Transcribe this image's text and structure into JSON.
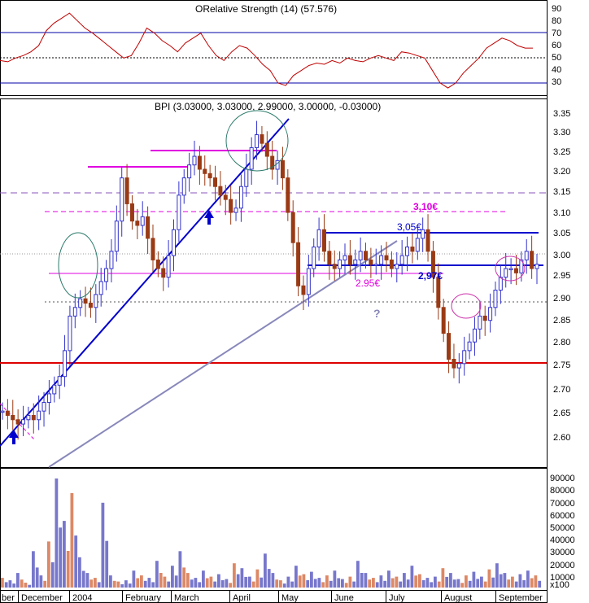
{
  "colors": {
    "background": "#ffffff",
    "rsi_line": "#c00000",
    "band_line": "#0000aa",
    "trend_blue": "#0000cc",
    "trend_gray": "#8888bb",
    "magenta": "#e000e0",
    "support_red": "#dd0000",
    "bar_up": "#3333cc",
    "bar_down": "#9a3a14",
    "vol_up": "#7777cc",
    "vol_down": "#dd8866",
    "ellipse_green": "#2a7a6a",
    "ellipse_pink": "#cc33aa"
  },
  "rsi_panel": {
    "title": "ORelative Strength (14) (57.576)",
    "y_ticks": [
      "90",
      "80",
      "70",
      "60",
      "50",
      "40",
      "30"
    ],
    "overbought": 70,
    "oversold": 30,
    "midline": 50
  },
  "price_panel": {
    "title": "BPI (3.03000, 3.03000, 2.99000, 3.00000, -0.03000)",
    "y_ticks": [
      "3.35",
      "3.30",
      "3.25",
      "3.20",
      "3.15",
      "3.10",
      "3.05",
      "3.00",
      "2.95",
      "2.90",
      "2.85",
      "2.80",
      "2.75",
      "2.70",
      "2.65",
      "2.60"
    ],
    "annotations": {
      "level_310": "3,10€",
      "level_305": "3,05€",
      "level_297": "2,97€",
      "level_295": "2.95€",
      "question": "?"
    }
  },
  "volume_panel": {
    "y_ticks": [
      "90000",
      "80000",
      "70000",
      "60000",
      "50000",
      "40000",
      "30000",
      "20000",
      "10000"
    ],
    "unit": "x100"
  },
  "x_axis": {
    "months": [
      "ber",
      "December",
      "2004",
      "February",
      "March",
      "April",
      "May",
      "June",
      "July",
      "August",
      "September"
    ]
  },
  "chart_data": {
    "type": "bar",
    "title": "BPI (3.03000, 3.03000, 2.99000, 3.00000, -0.03000)",
    "x_range": [
      "Nov 2003",
      "Sep 2004"
    ],
    "ylim": [
      2.56,
      3.38
    ],
    "key_levels": {
      "resistance_magenta": [
        3.25,
        3.21,
        3.1,
        2.95
      ],
      "resistance_blue": [
        3.05,
        2.97
      ],
      "support_red": 2.755,
      "dashed_purple": 3.15,
      "dotted_gray": 2.89
    },
    "close_path": [
      2.66,
      2.65,
      2.64,
      2.63,
      2.64,
      2.65,
      2.64,
      2.66,
      2.68,
      2.7,
      2.72,
      2.74,
      2.8,
      2.88,
      2.9,
      2.92,
      2.91,
      2.9,
      2.93,
      2.96,
      2.99,
      3.03,
      3.1,
      3.2,
      3.14,
      3.1,
      3.09,
      3.11,
      3.06,
      3.01,
      2.99,
      2.97,
      3.02,
      3.08,
      3.16,
      3.2,
      3.23,
      3.25,
      3.22,
      3.21,
      3.2,
      3.18,
      3.16,
      3.15,
      3.12,
      3.13,
      3.18,
      3.22,
      3.27,
      3.3,
      3.28,
      3.25,
      3.22,
      3.24,
      3.2,
      3.12,
      3.05,
      2.95,
      2.93,
      2.99,
      3.04,
      3.08,
      3.03,
      3.0,
      2.99,
      3.01,
      3.02,
      3.0,
      3.01,
      3.03,
      3.01,
      3.0,
      3.0,
      3.02,
      3.01,
      2.99,
      3.0,
      3.02,
      3.04,
      3.03,
      3.06,
      3.08,
      3.03,
      2.97,
      2.9,
      2.84,
      2.78,
      2.76,
      2.77,
      2.8,
      2.82,
      2.85,
      2.88,
      2.87,
      2.9,
      2.94,
      2.97,
      2.99,
      2.99,
      2.98,
      3.01,
      3.03,
      2.99,
      3.0
    ],
    "rsi_path": [
      48,
      47,
      50,
      52,
      55,
      60,
      72,
      78,
      82,
      86,
      80,
      74,
      70,
      65,
      60,
      55,
      50,
      52,
      62,
      74,
      70,
      64,
      60,
      55,
      62,
      66,
      70,
      60,
      52,
      48,
      55,
      60,
      58,
      52,
      45,
      40,
      30,
      28,
      36,
      40,
      44,
      46,
      45,
      48,
      46,
      50,
      48,
      47,
      50,
      52,
      50,
      48,
      55,
      54,
      52,
      50,
      40,
      30,
      26,
      30,
      38,
      44,
      50,
      58,
      62,
      66,
      64,
      60,
      58,
      58
    ],
    "volume_path": [
      8,
      6,
      12,
      4,
      30,
      10,
      38,
      90,
      55,
      78,
      25,
      12,
      8,
      70,
      10,
      5,
      6,
      14,
      10,
      8,
      22,
      9,
      18,
      30,
      12,
      8,
      14,
      9,
      11,
      7,
      20,
      16,
      9,
      15,
      28,
      12,
      6,
      9,
      18,
      11,
      13,
      8,
      10,
      14,
      7,
      9,
      22,
      12,
      8,
      10,
      14,
      9,
      12,
      18,
      11,
      8,
      9,
      16,
      12,
      7,
      10,
      13,
      9,
      15,
      20,
      12,
      9,
      11,
      14,
      10
    ]
  }
}
